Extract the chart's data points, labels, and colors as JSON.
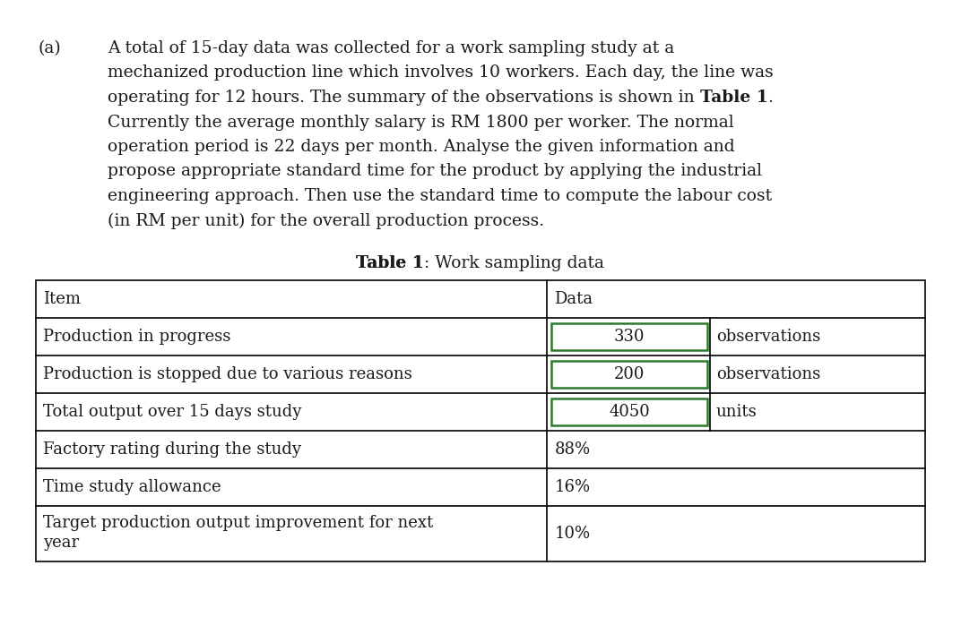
{
  "label_a": "(a)",
  "para_lines": [
    "A total of 15-day data was collected for a work sampling study at a",
    "mechanized production line which involves 10 workers. Each day, the line was",
    "operating for 12 hours. The summary of the observations is shown in Table 1.",
    "Currently the average monthly salary is RM 1800 per worker. The normal",
    "operation period is 22 days per month. Analyse the given information and",
    "propose appropriate standard time for the product by applying the industrial",
    "engineering approach. Then use the standard time to compute the labour cost",
    "(in RM per unit) for the overall production process."
  ],
  "bold_line_index": 2,
  "bold_phrase": "Table 1",
  "bold_phrase_in_line": "Table 1.",
  "table_title_bold": "Table 1",
  "table_title_colon": ":",
  "table_title_normal": " Work sampling data",
  "col_headers": [
    "Item",
    "Data"
  ],
  "rows": [
    {
      "item": "Production in progress",
      "data_value": "330",
      "data_unit": "observations",
      "has_box": true,
      "multiline": false
    },
    {
      "item": "Production is stopped due to various reasons",
      "data_value": "200",
      "data_unit": "observations",
      "has_box": true,
      "multiline": false
    },
    {
      "item": "Total output over 15 days study",
      "data_value": "4050",
      "data_unit": "units",
      "has_box": true,
      "multiline": false
    },
    {
      "item": "Factory rating during the study",
      "data_value": "88%",
      "data_unit": "",
      "has_box": false,
      "multiline": false
    },
    {
      "item": "Time study allowance",
      "data_value": "16%",
      "data_unit": "",
      "has_box": false,
      "multiline": false
    },
    {
      "item": "Target production output improvement for next\nyear",
      "data_value": "10%",
      "data_unit": "",
      "has_box": false,
      "multiline": true
    }
  ],
  "bg_color": "#ffffff",
  "text_color": "#1a1a1a",
  "box_edge_color": "#2d7a2d",
  "font_size_para": 13.5,
  "font_size_table": 13.0,
  "font_size_title": 13.5,
  "font_size_label": 13.5
}
